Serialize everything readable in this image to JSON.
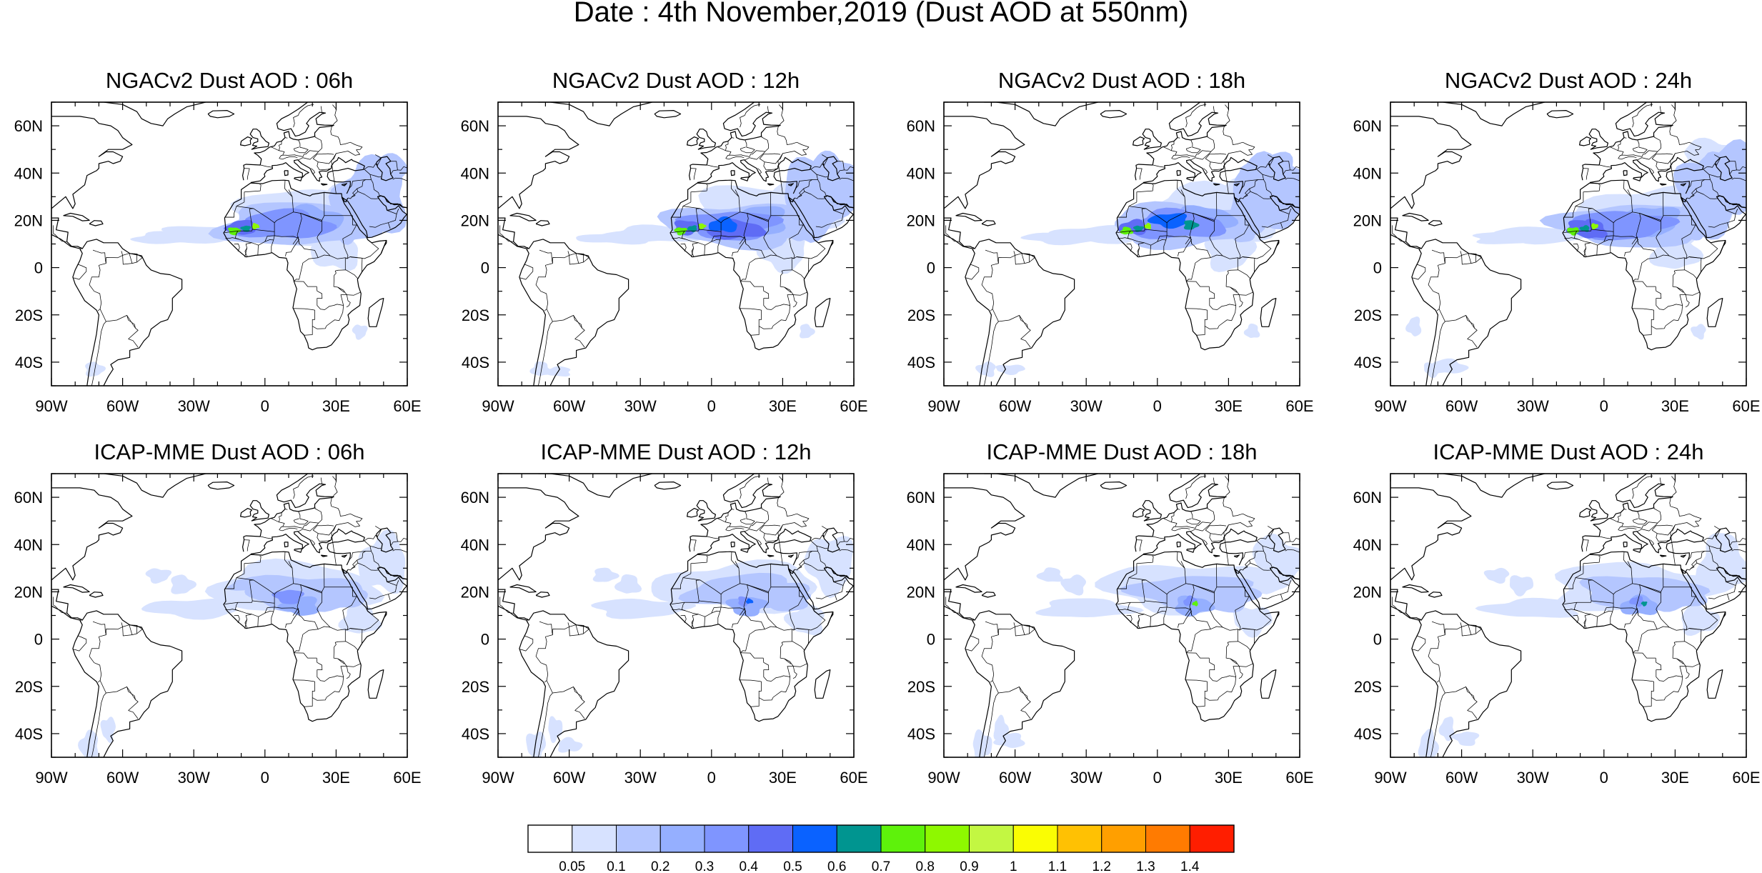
{
  "figure": {
    "title": "Date : 4th November,2019 (Dust AOD at 550nm)"
  },
  "panels": [
    {
      "title": "NGACv2 Dust AOD : 06h",
      "model": "NGACv2",
      "lead": "06h"
    },
    {
      "title": "NGACv2 Dust AOD : 12h",
      "model": "NGACv2",
      "lead": "12h"
    },
    {
      "title": "NGACv2 Dust AOD : 18h",
      "model": "NGACv2",
      "lead": "18h"
    },
    {
      "title": "NGACv2 Dust AOD : 24h",
      "model": "NGACv2",
      "lead": "24h"
    },
    {
      "title": "ICAP-MME Dust AOD : 06h",
      "model": "ICAP-MME",
      "lead": "06h"
    },
    {
      "title": "ICAP-MME Dust AOD : 12h",
      "model": "ICAP-MME",
      "lead": "12h"
    },
    {
      "title": "ICAP-MME Dust AOD : 18h",
      "model": "ICAP-MME",
      "lead": "18h"
    },
    {
      "title": "ICAP-MME Dust AOD : 24h",
      "model": "ICAP-MME",
      "lead": "24h"
    }
  ],
  "map": {
    "lon_range": [
      -90,
      60
    ],
    "lat_range": [
      -50,
      70
    ],
    "lon_ticks": [
      -90,
      -60,
      -30,
      0,
      30,
      60
    ],
    "lon_tick_labels": [
      "90W",
      "60W",
      "30W",
      "0",
      "30E",
      "60E"
    ],
    "lat_ticks": [
      -40,
      -20,
      0,
      20,
      40,
      60
    ],
    "lat_tick_labels": [
      "40S",
      "20S",
      "0",
      "20N",
      "40N",
      "60N"
    ]
  },
  "colorbar": {
    "labels": [
      "0.05",
      "0.1",
      "0.2",
      "0.3",
      "0.4",
      "0.5",
      "0.6",
      "0.7",
      "0.8",
      "0.9",
      "1",
      "1.1",
      "1.2",
      "1.3",
      "1.4"
    ],
    "colors": [
      "#ffffff",
      "#d7e2ff",
      "#b4c6ff",
      "#95afff",
      "#7f95ff",
      "#5f6cf5",
      "#0a62ff",
      "#009590",
      "#5ef20b",
      "#8ef800",
      "#c3f742",
      "#fafd03",
      "#ffc103",
      "#ff9f00",
      "#ff7b01",
      "#ff1e00"
    ]
  }
}
